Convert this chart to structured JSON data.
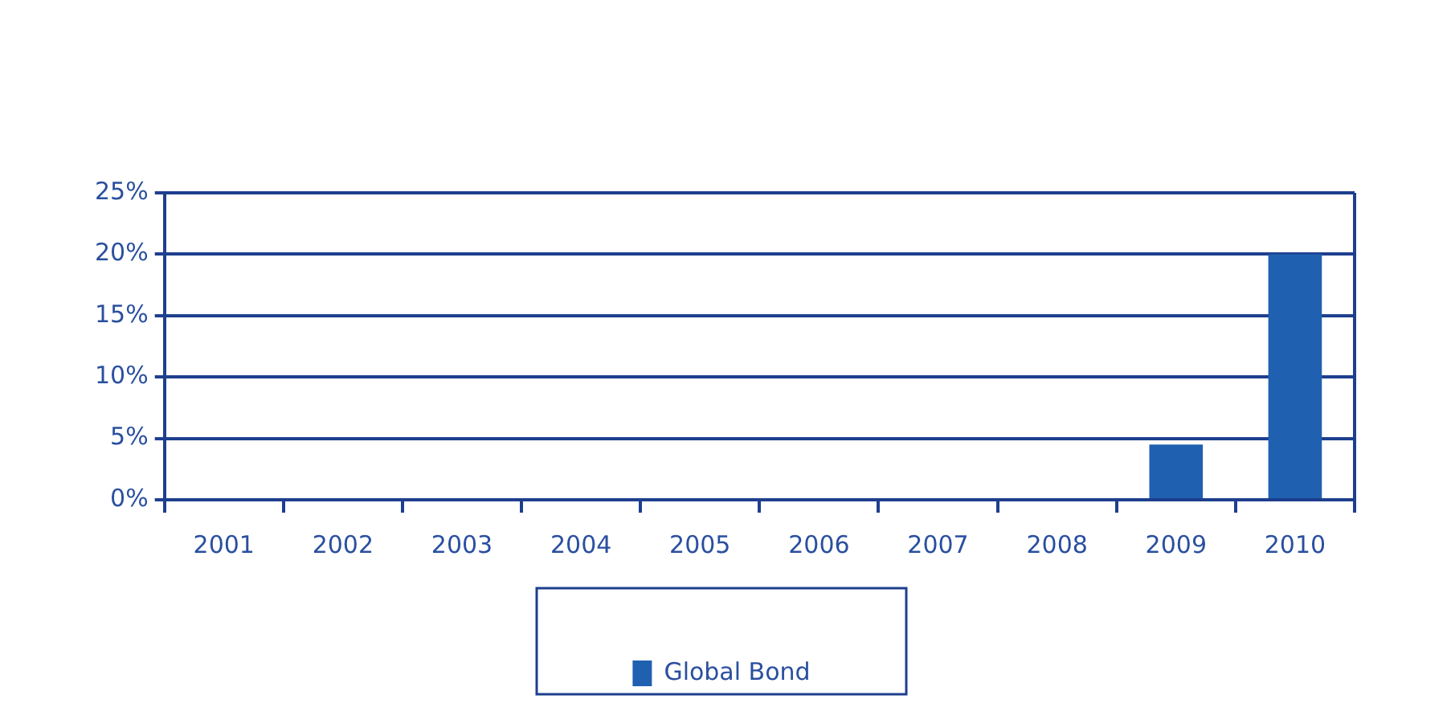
{
  "chart_data": {
    "type": "bar",
    "categories": [
      "2001",
      "2002",
      "2003",
      "2004",
      "2005",
      "2006",
      "2007",
      "2008",
      "2009",
      "2010"
    ],
    "series": [
      {
        "name": "Global Bond",
        "color": "#2060b0",
        "values": [
          0,
          0,
          0,
          0,
          0,
          0,
          0,
          0,
          4.5,
          20
        ]
      }
    ],
    "ylim": [
      0,
      25
    ],
    "yticks": [
      {
        "value": 0,
        "label": "0%"
      },
      {
        "value": 5,
        "label": "5%"
      },
      {
        "value": 10,
        "label": "10%"
      },
      {
        "value": 15,
        "label": "15%"
      },
      {
        "value": 20,
        "label": "20%"
      },
      {
        "value": 25,
        "label": "25%"
      }
    ],
    "grid": "y",
    "legend": "bottom"
  }
}
